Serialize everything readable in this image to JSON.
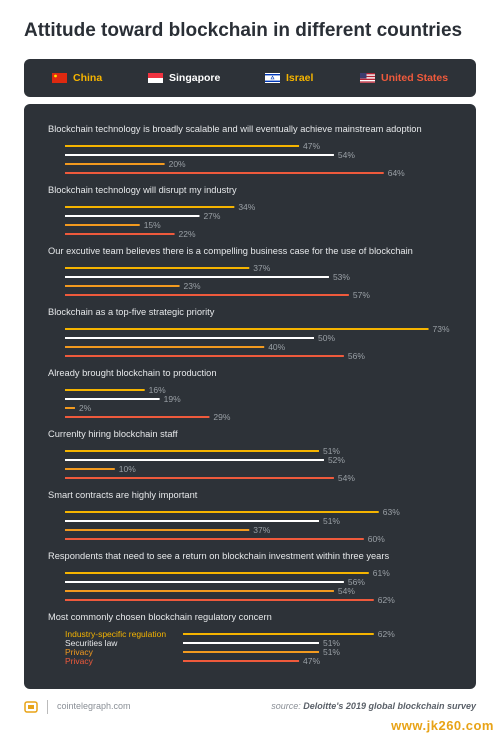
{
  "title": "Attitude toward blockchain in different countries",
  "legend": [
    {
      "name": "China",
      "color": "#f5b400",
      "flag": "china-flag-icon"
    },
    {
      "name": "Singapore",
      "color": "#ffffff",
      "flag": "singapore-flag-icon"
    },
    {
      "name": "Israel",
      "color": "#f5b400",
      "flag": "israel-flag-icon"
    },
    {
      "name": "United States",
      "color": "#ef5a3c",
      "flag": "us-flag-icon"
    }
  ],
  "chart_data": {
    "type": "bar",
    "orientation": "horizontal",
    "xlim": [
      0,
      100
    ],
    "unit": "%",
    "series_colors": {
      "China": "#f5b400",
      "Singapore": "#ffffff",
      "Israel": "#f29a1f",
      "United States": "#ef5a3c"
    },
    "groups": [
      {
        "label": "Blockchain technology is broadly scalable and will eventually achieve mainstream adoption",
        "values": {
          "China": 47,
          "Singapore": 54,
          "Israel": 20,
          "United States": 64
        }
      },
      {
        "label": "Blockchain technology will disrupt my industry",
        "values": {
          "China": 34,
          "Singapore": 27,
          "Israel": 15,
          "United States": 22
        }
      },
      {
        "label": "Our excutive team believes there is a compelling business case for the use of blockchain",
        "values": {
          "China": 37,
          "Singapore": 53,
          "Israel": 23,
          "United States": 57
        }
      },
      {
        "label": "Blockchain as a top-five strategic priority",
        "values": {
          "China": 73,
          "Singapore": 50,
          "Israel": 40,
          "United States": 56
        }
      },
      {
        "label": "Already brought blockchain to production",
        "values": {
          "China": 16,
          "Singapore": 19,
          "Israel": 2,
          "United States": 29
        }
      },
      {
        "label": "Currenlty hiring blockchain staff",
        "values": {
          "China": 51,
          "Singapore": 52,
          "Israel": 10,
          "United States": 54
        }
      },
      {
        "label": "Smart contracts are highly important",
        "values": {
          "China": 63,
          "Singapore": 51,
          "Israel": 37,
          "United States": 60
        }
      },
      {
        "label": "Respondents that need to see a return on blockchain investment within three years",
        "values": {
          "China": 61,
          "Singapore": 56,
          "Israel": 54,
          "United States": 62
        }
      }
    ],
    "concern_group": {
      "label": "Most commonly chosen blockchain regulatory concern",
      "items": [
        {
          "country": "China",
          "concern": "Industry-specific regulation",
          "value": 62
        },
        {
          "country": "Singapore",
          "concern": "Securities law",
          "value": 51
        },
        {
          "country": "Israel",
          "concern": "Privacy",
          "value": 51
        },
        {
          "country": "United States",
          "concern": "Privacy",
          "value": 47
        }
      ]
    }
  },
  "footer": {
    "site": "cointelegraph.com",
    "source_prefix": "source:",
    "source_name": "Deloitte's 2019 global blockchain survey",
    "watermark": "www.jk260.com"
  }
}
